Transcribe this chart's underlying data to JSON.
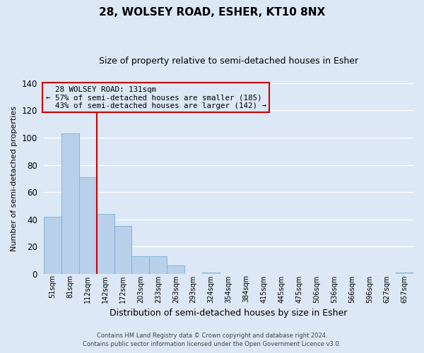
{
  "title": "28, WOLSEY ROAD, ESHER, KT10 8NX",
  "subtitle": "Size of property relative to semi-detached houses in Esher",
  "xlabel": "Distribution of semi-detached houses by size in Esher",
  "ylabel": "Number of semi-detached properties",
  "bar_color": "#b8d0ea",
  "bar_edge_color": "#7aafd4",
  "background_color": "#dce8f5",
  "grid_color": "#ffffff",
  "annotation_box_edge": "#cc0000",
  "vline_color": "#cc0000",
  "categories": [
    "51sqm",
    "81sqm",
    "112sqm",
    "142sqm",
    "172sqm",
    "203sqm",
    "233sqm",
    "263sqm",
    "293sqm",
    "324sqm",
    "354sqm",
    "384sqm",
    "415sqm",
    "445sqm",
    "475sqm",
    "506sqm",
    "536sqm",
    "566sqm",
    "596sqm",
    "627sqm",
    "657sqm"
  ],
  "values": [
    42,
    103,
    71,
    44,
    35,
    13,
    13,
    6,
    0,
    1,
    0,
    0,
    0,
    0,
    0,
    0,
    0,
    0,
    0,
    0,
    1
  ],
  "ylim": [
    0,
    140
  ],
  "yticks": [
    0,
    20,
    40,
    60,
    80,
    100,
    120,
    140
  ],
  "property_label": "28 WOLSEY ROAD: 131sqm",
  "pct_smaller": 57,
  "n_smaller": 185,
  "pct_larger": 43,
  "n_larger": 142,
  "vline_x_index": 2.5,
  "footer_line1": "Contains HM Land Registry data © Crown copyright and database right 2024.",
  "footer_line2": "Contains public sector information licensed under the Open Government Licence v3.0."
}
